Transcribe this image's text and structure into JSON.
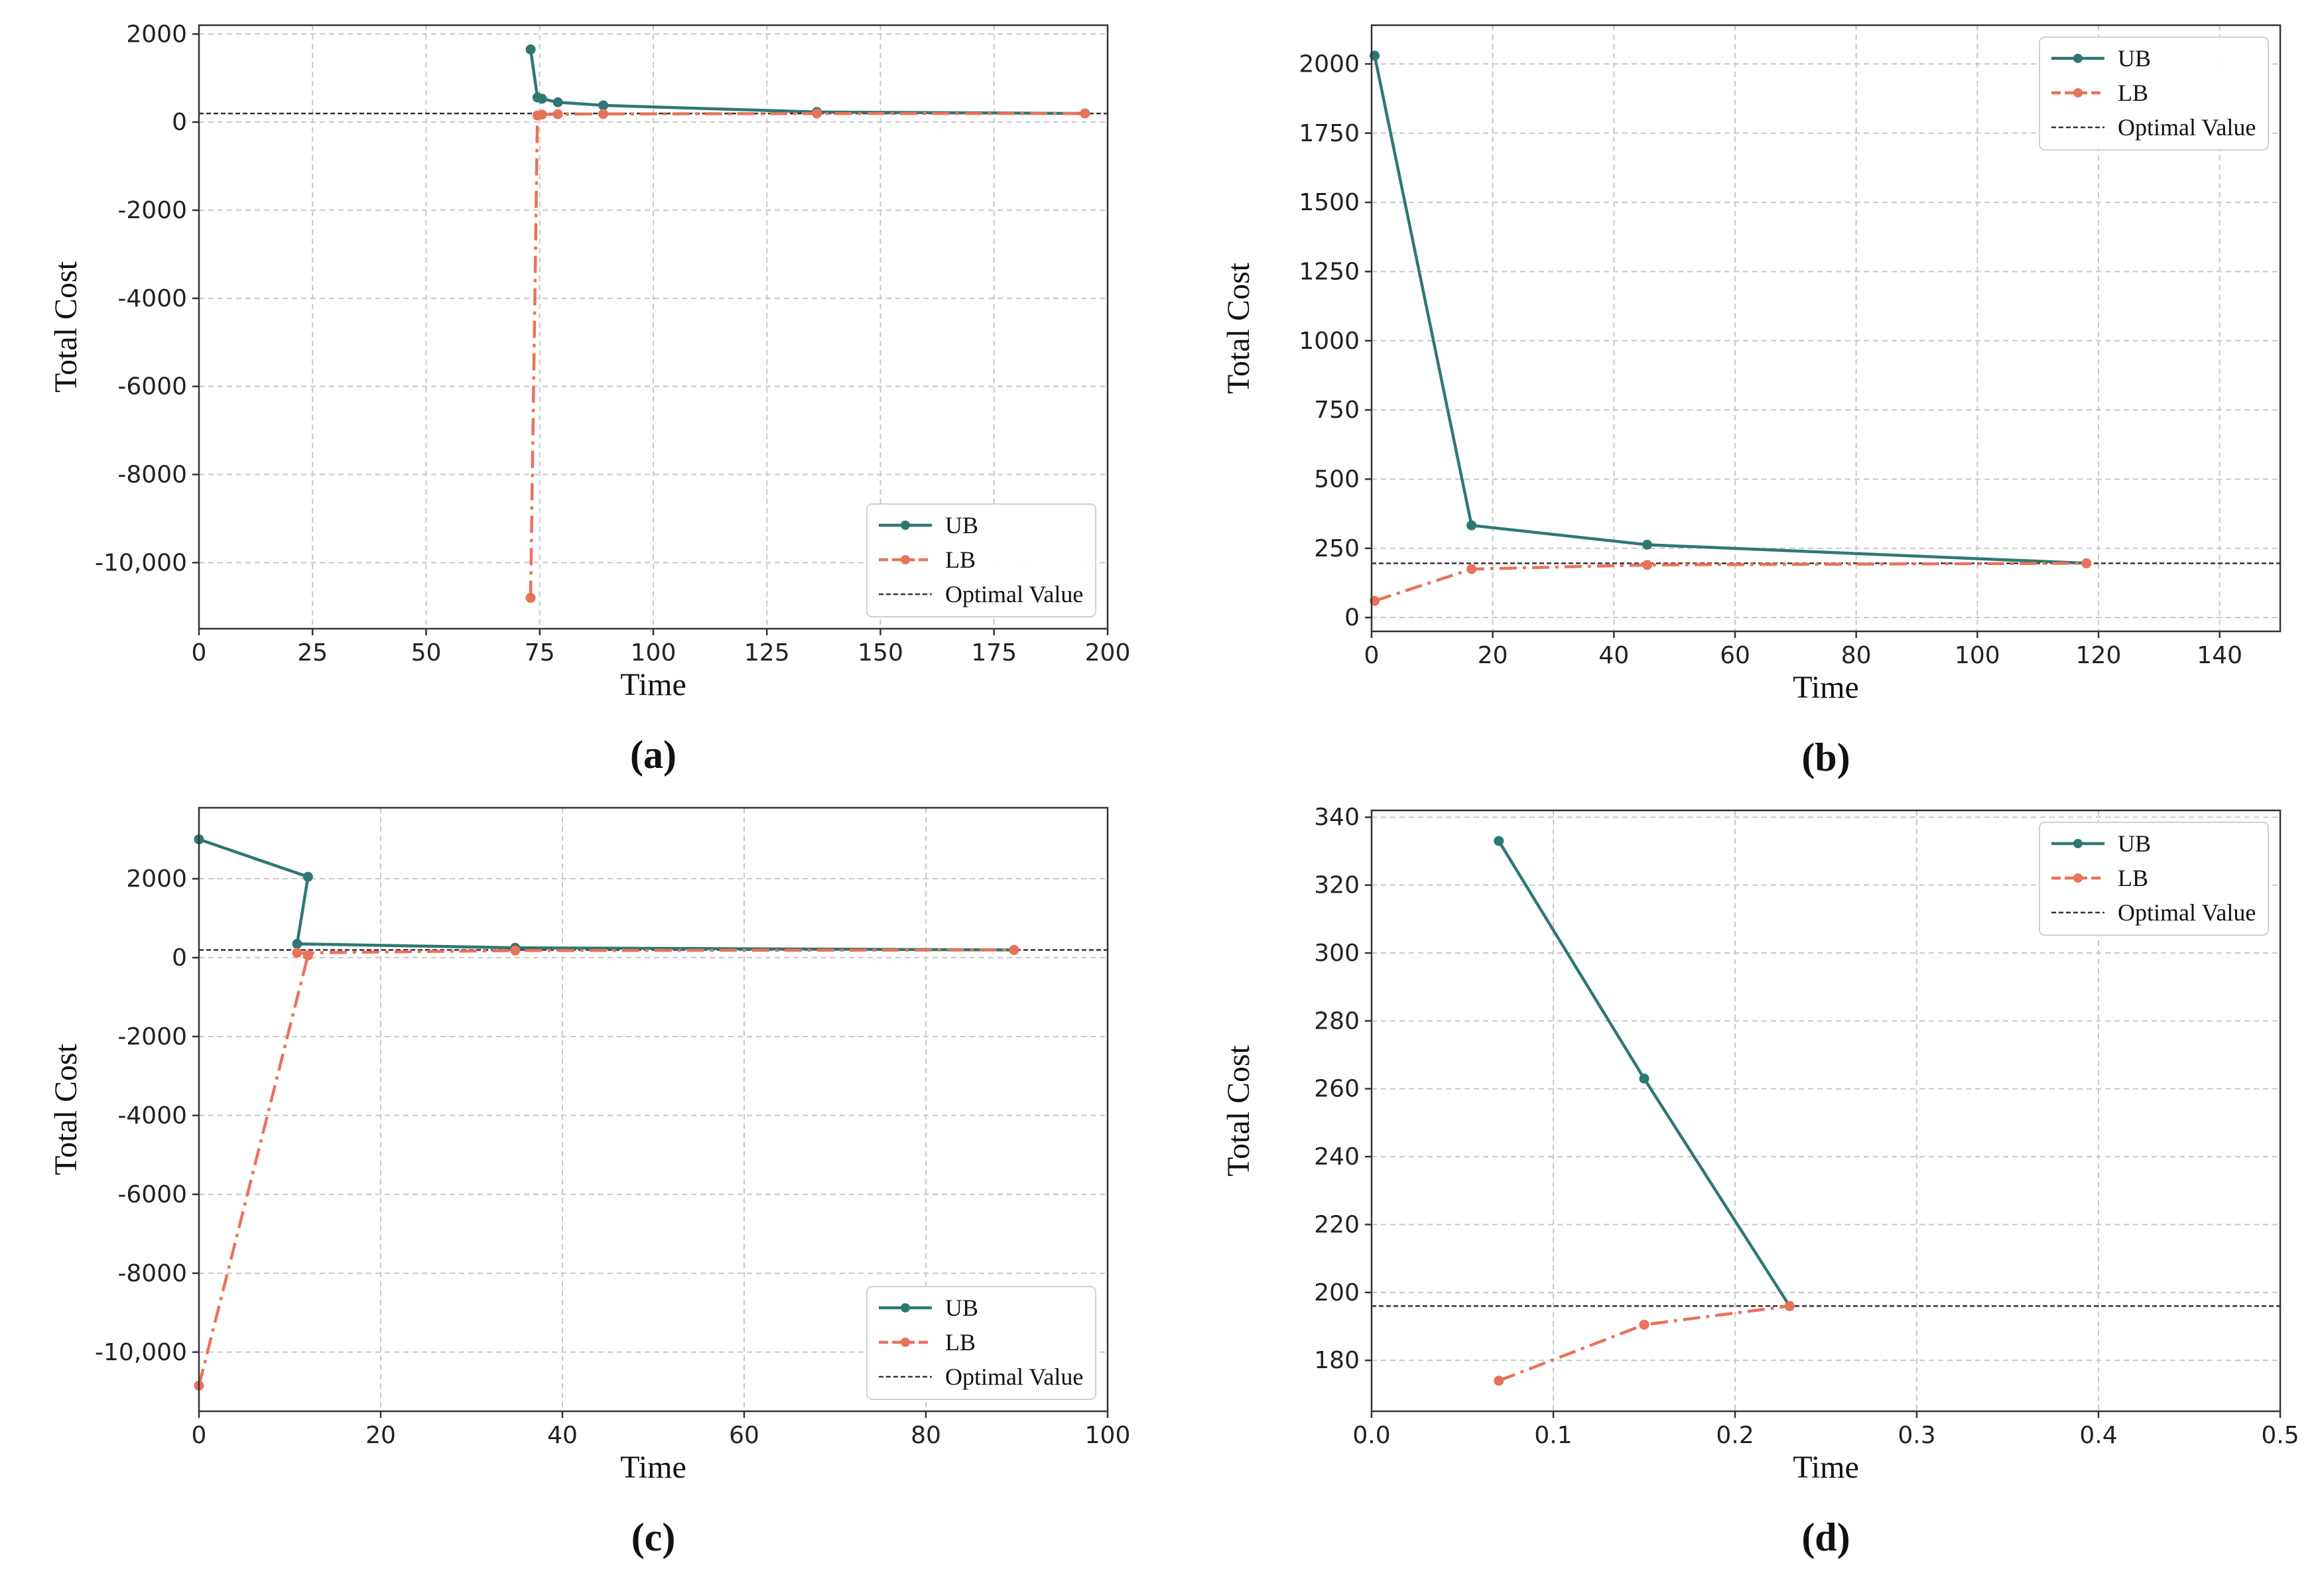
{
  "colors": {
    "ub": "#2e7873",
    "lb": "#e8735a",
    "optimal": "#333333",
    "grid": "#c8c8c8"
  },
  "legend": {
    "ub": "UB",
    "lb": "LB",
    "optimal": "Optimal Value"
  },
  "chart_data": [
    {
      "id": "a",
      "type": "line",
      "panel_label": "(a)",
      "xlabel": "Time",
      "ylabel": "Total Cost",
      "xlim": [
        0,
        200
      ],
      "ylim": [
        -11500,
        2200
      ],
      "xticks": [
        0,
        25,
        50,
        75,
        100,
        125,
        150,
        175,
        200
      ],
      "xtick_labels": [
        "0",
        "25",
        "50",
        "75",
        "100",
        "125",
        "150",
        "175",
        "200"
      ],
      "yticks": [
        2000,
        0,
        -2000,
        -4000,
        -6000,
        -8000,
        -10000
      ],
      "ytick_labels": [
        "2000",
        "0",
        "-2000",
        "-4000",
        "-6000",
        "-8000",
        "-10,000"
      ],
      "optimal_value": 196,
      "legend_position": "lower-right",
      "series": [
        {
          "name": "UB",
          "x": [
            73,
            74.5,
            75.5,
            79,
            89,
            136,
            195
          ],
          "y": [
            1650,
            560,
            530,
            450,
            380,
            230,
            196
          ]
        },
        {
          "name": "LB",
          "x": [
            73,
            74.5,
            75.5,
            79,
            89,
            136,
            195
          ],
          "y": [
            -10800,
            150,
            170,
            180,
            185,
            195,
            196
          ]
        }
      ]
    },
    {
      "id": "b",
      "type": "line",
      "panel_label": "(b)",
      "xlabel": "Time",
      "ylabel": "Total Cost",
      "xlim": [
        0,
        150
      ],
      "ylim": [
        -50,
        2140
      ],
      "xticks": [
        0,
        20,
        40,
        60,
        80,
        100,
        120,
        140
      ],
      "xtick_labels": [
        "0",
        "20",
        "40",
        "60",
        "80",
        "100",
        "120",
        "140"
      ],
      "yticks": [
        2000,
        1750,
        1500,
        1250,
        1000,
        750,
        500,
        250,
        0
      ],
      "ytick_labels": [
        "2000",
        "1750",
        "1500",
        "1250",
        "1000",
        "750",
        "500",
        "250",
        "0"
      ],
      "optimal_value": 196,
      "legend_position": "upper-right",
      "series": [
        {
          "name": "UB",
          "x": [
            0.5,
            16.5,
            45.5,
            118
          ],
          "y": [
            2030,
            333,
            263,
            196
          ]
        },
        {
          "name": "LB",
          "x": [
            0.5,
            16.5,
            45.5,
            118
          ],
          "y": [
            60,
            175,
            190,
            196
          ]
        }
      ]
    },
    {
      "id": "c",
      "type": "line",
      "panel_label": "(c)",
      "xlabel": "Time",
      "ylabel": "Total Cost",
      "xlim": [
        0,
        100
      ],
      "ylim": [
        -11500,
        3800
      ],
      "xticks": [
        0,
        20,
        40,
        60,
        80,
        100
      ],
      "xtick_labels": [
        "0",
        "20",
        "40",
        "60",
        "80",
        "100"
      ],
      "yticks": [
        2000,
        0,
        -2000,
        -4000,
        -6000,
        -8000,
        -10000
      ],
      "ytick_labels": [
        "2000",
        "0",
        "-2000",
        "-4000",
        "-6000",
        "-8000",
        "-10,000"
      ],
      "optimal_value": 196,
      "legend_position": "lower-right",
      "series": [
        {
          "name": "UB",
          "x": [
            0,
            12,
            10.8,
            34.8,
            89.7
          ],
          "y": [
            3000,
            2050,
            350,
            250,
            196
          ]
        },
        {
          "name": "LB",
          "x": [
            0,
            12,
            10.8,
            34.8,
            89.7
          ],
          "y": [
            -10850,
            60,
            120,
            180,
            196
          ]
        }
      ]
    },
    {
      "id": "d",
      "type": "line",
      "panel_label": "(d)",
      "xlabel": "Time",
      "ylabel": "Total Cost",
      "xlim": [
        0,
        0.5
      ],
      "ylim": [
        165,
        342
      ],
      "xticks": [
        0,
        0.1,
        0.2,
        0.3,
        0.4,
        0.5
      ],
      "xtick_labels": [
        "0.0",
        "0.1",
        "0.2",
        "0.3",
        "0.4",
        "0.5"
      ],
      "yticks": [
        340,
        320,
        300,
        280,
        260,
        240,
        220,
        200,
        180
      ],
      "ytick_labels": [
        "340",
        "320",
        "300",
        "280",
        "260",
        "240",
        "220",
        "200",
        "180"
      ],
      "optimal_value": 196,
      "legend_position": "upper-right",
      "series": [
        {
          "name": "UB",
          "x": [
            0.07,
            0.15,
            0.23
          ],
          "y": [
            333,
            263,
            196
          ]
        },
        {
          "name": "LB",
          "x": [
            0.07,
            0.15,
            0.23
          ],
          "y": [
            174,
            190.5,
            196
          ]
        }
      ]
    }
  ]
}
